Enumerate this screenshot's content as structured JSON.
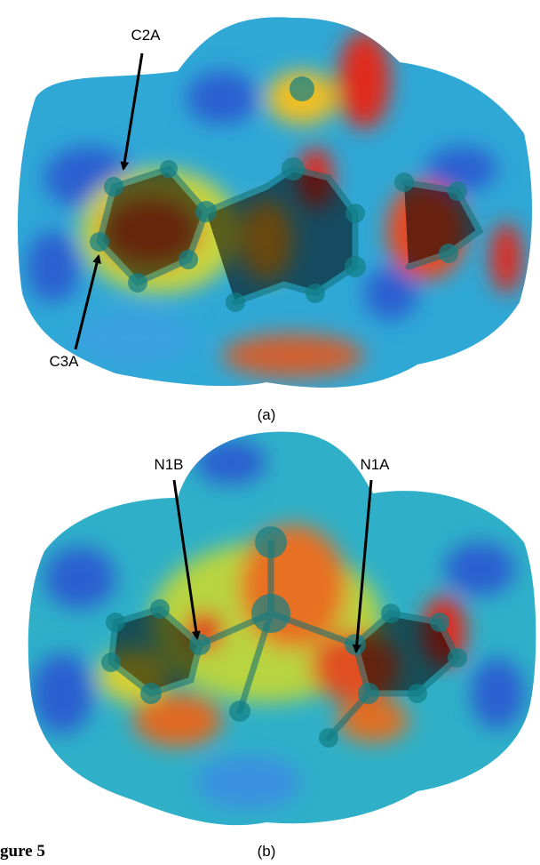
{
  "panels": [
    {
      "label": "(a)",
      "annotations": [
        {
          "text": "C2A"
        },
        {
          "text": "C3A"
        }
      ]
    },
    {
      "label": "(b)",
      "annotations": [
        {
          "text": "N1B"
        },
        {
          "text": "N1A"
        }
      ]
    }
  ],
  "caption": {
    "text": "gure 5"
  }
}
